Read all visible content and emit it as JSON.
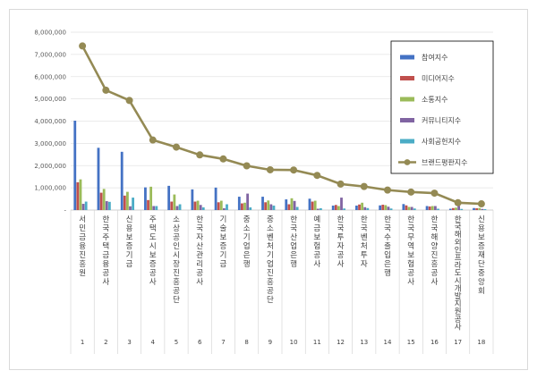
{
  "chart_data": {
    "type": "bar",
    "title": "",
    "xlabel": "",
    "ylabel": "",
    "ylim": [
      0,
      8000000
    ],
    "yticks": [
      0,
      1000000,
      2000000,
      3000000,
      4000000,
      5000000,
      6000000,
      7000000,
      8000000
    ],
    "ytick_labels": [
      "-",
      "1,000,000",
      "2,000,000",
      "3,000,000",
      "4,000,000",
      "5,000,000",
      "6,000,000",
      "7,000,000",
      "8,000,000"
    ],
    "grid": true,
    "legend_position": "top-right",
    "categories": [
      "서민금융진흥원",
      "한국주택금융공사",
      "신용보증기금",
      "주택도시보증공사",
      "소상공인시장진흥공단",
      "한국자산관리공사",
      "기술보증기금",
      "중소기업은행",
      "중소벤처기업진흥공단",
      "한국산업은행",
      "예금보험공사",
      "한국투자공사",
      "한국벤처투자",
      "한국수출입은행",
      "한국무역보험공사",
      "한국해양진흥공사",
      "한국해외인프라도시개발지원공사",
      "신용보증재단중앙회"
    ],
    "ranks": [
      "1",
      "2",
      "3",
      "4",
      "5",
      "6",
      "7",
      "8",
      "9",
      "10",
      "11",
      "12",
      "13",
      "14",
      "15",
      "16",
      "17",
      "18"
    ],
    "series": [
      {
        "name": "참여지수",
        "kind": "bar",
        "color": "#4472C4",
        "values": [
          4020000,
          2800000,
          2620000,
          1020000,
          1090000,
          930000,
          1010000,
          600000,
          600000,
          480000,
          510000,
          200000,
          200000,
          210000,
          270000,
          180000,
          60000,
          90000
        ]
      },
      {
        "name": "미디어지수",
        "kind": "bar",
        "color": "#C0504D",
        "values": [
          1250000,
          780000,
          650000,
          450000,
          380000,
          380000,
          350000,
          300000,
          350000,
          260000,
          380000,
          230000,
          250000,
          240000,
          210000,
          160000,
          90000,
          80000
        ]
      },
      {
        "name": "소통지수",
        "kind": "bar",
        "color": "#9BBB59",
        "values": [
          1380000,
          950000,
          820000,
          1050000,
          700000,
          420000,
          420000,
          330000,
          430000,
          530000,
          420000,
          180000,
          330000,
          220000,
          140000,
          180000,
          110000,
          90000
        ]
      },
      {
        "name": "커뮤니티지수",
        "kind": "bar",
        "color": "#8064A2",
        "values": [
          280000,
          400000,
          170000,
          180000,
          180000,
          230000,
          80000,
          740000,
          260000,
          410000,
          60000,
          560000,
          130000,
          150000,
          140000,
          180000,
          190000,
          50000
        ]
      },
      {
        "name": "사회공헌지수",
        "kind": "bar",
        "color": "#4BACC6",
        "values": [
          380000,
          370000,
          560000,
          180000,
          260000,
          120000,
          260000,
          120000,
          200000,
          140000,
          80000,
          70000,
          90000,
          70000,
          70000,
          60000,
          50000,
          40000
        ]
      },
      {
        "name": "브랜드평판지수",
        "kind": "line",
        "color": "#948A54",
        "values": [
          7380000,
          5390000,
          4930000,
          3150000,
          2830000,
          2480000,
          2300000,
          1990000,
          1810000,
          1800000,
          1560000,
          1170000,
          1060000,
          900000,
          810000,
          760000,
          330000,
          280000
        ]
      }
    ]
  }
}
